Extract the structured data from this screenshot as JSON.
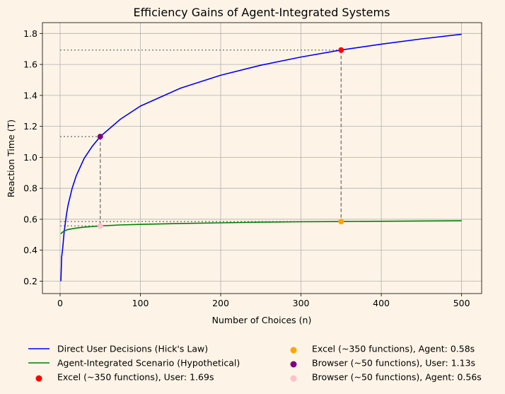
{
  "chart_data": {
    "type": "line",
    "title": "Efficiency Gains of Agent-Integrated Systems",
    "xlabel": "Number of Choices (n)",
    "ylabel": "Reaction Time (T)",
    "xlim": [
      -22,
      525
    ],
    "ylim": [
      0.12,
      1.87
    ],
    "xticks": [
      0,
      100,
      200,
      300,
      400,
      500
    ],
    "yticks": [
      0.2,
      0.4,
      0.6,
      0.8,
      1.0,
      1.2,
      1.4,
      1.6,
      1.8
    ],
    "ytick_labels": [
      "0.2",
      "0.4",
      "0.6",
      "0.8",
      "1.0",
      "1.2",
      "1.4",
      "1.6",
      "1.8"
    ],
    "grid": true,
    "legend_position": "below",
    "series": [
      {
        "name": "Direct User Decisions (Hick's Law)",
        "color": "#0000ff",
        "x": [
          1,
          2,
          3,
          5,
          8,
          10,
          15,
          20,
          30,
          40,
          50,
          75,
          100,
          150,
          200,
          250,
          300,
          350,
          400,
          450,
          500
        ],
        "y": [
          0.2,
          0.358,
          0.4,
          0.517,
          0.634,
          0.692,
          0.8,
          0.88,
          0.993,
          1.071,
          1.134,
          1.246,
          1.331,
          1.447,
          1.53,
          1.595,
          1.648,
          1.693,
          1.731,
          1.765,
          1.795
        ]
      },
      {
        "name": "Agent-Integrated Scenario (Hypothetical)",
        "color": "#008000",
        "x": [
          1,
          2,
          5,
          10,
          20,
          30,
          50,
          75,
          100,
          150,
          200,
          250,
          300,
          350,
          400,
          450,
          500
        ],
        "y": [
          0.505,
          0.512,
          0.524,
          0.534,
          0.543,
          0.549,
          0.557,
          0.563,
          0.567,
          0.573,
          0.577,
          0.581,
          0.584,
          0.585,
          0.587,
          0.589,
          0.59
        ]
      }
    ],
    "points": [
      {
        "label": "Excel (~350 functions), User: 1.69s",
        "x": 350,
        "y": 1.693,
        "color": "#ff0000"
      },
      {
        "label": "Excel (~350 functions), Agent: 0.58s",
        "x": 350,
        "y": 0.585,
        "color": "#ffa500"
      },
      {
        "label": "Browser (~50 functions), User: 1.13s",
        "x": 50,
        "y": 1.134,
        "color": "#800080"
      },
      {
        "label": "Browser (~50 functions), Agent: 0.56s",
        "x": 50,
        "y": 0.557,
        "color": "#ffc0cb"
      }
    ]
  }
}
